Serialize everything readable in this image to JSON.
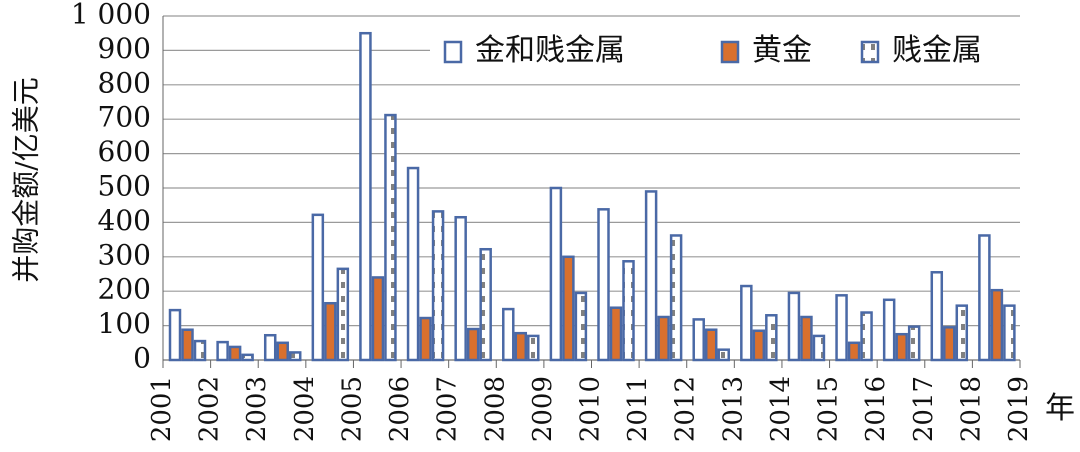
{
  "chart_data": {
    "type": "bar",
    "y_label": "并购金额/亿美元",
    "x_label": "年",
    "x": [
      2001,
      2002,
      2003,
      2004,
      2005,
      2006,
      2007,
      2008,
      2009,
      2010,
      2011,
      2012,
      2013,
      2014,
      2015,
      2016,
      2017,
      2018
    ],
    "xlim": [
      2001,
      2019
    ],
    "xticks": [
      2001,
      2002,
      2003,
      2004,
      2005,
      2006,
      2007,
      2008,
      2009,
      2010,
      2011,
      2012,
      2013,
      2014,
      2015,
      2016,
      2017,
      2018,
      2019
    ],
    "ylim": [
      0,
      1000
    ],
    "yticks": [
      0,
      100,
      200,
      300,
      400,
      500,
      600,
      700,
      800,
      900,
      {
        "value": 1000,
        "label": "1 000"
      }
    ],
    "grid": true,
    "legend": "top-right",
    "series": [
      {
        "name": "金和贱金属",
        "color": "#ffffff",
        "values": [
          145,
          52,
          72,
          422,
          950,
          558,
          415,
          148,
          500,
          438,
          490,
          118,
          215,
          195,
          188,
          175,
          255,
          362
        ]
      },
      {
        "name": "黄金",
        "color": "#d9702e",
        "values": [
          88,
          38,
          50,
          165,
          240,
          122,
          90,
          78,
          300,
          152,
          125,
          88,
          85,
          125,
          50,
          75,
          95,
          203
        ]
      },
      {
        "name": "贱金属",
        "color": "pattern",
        "values": [
          55,
          15,
          22,
          265,
          712,
          432,
          322,
          70,
          195,
          287,
          362,
          30,
          130,
          70,
          138,
          97,
          158,
          158
        ]
      }
    ]
  }
}
